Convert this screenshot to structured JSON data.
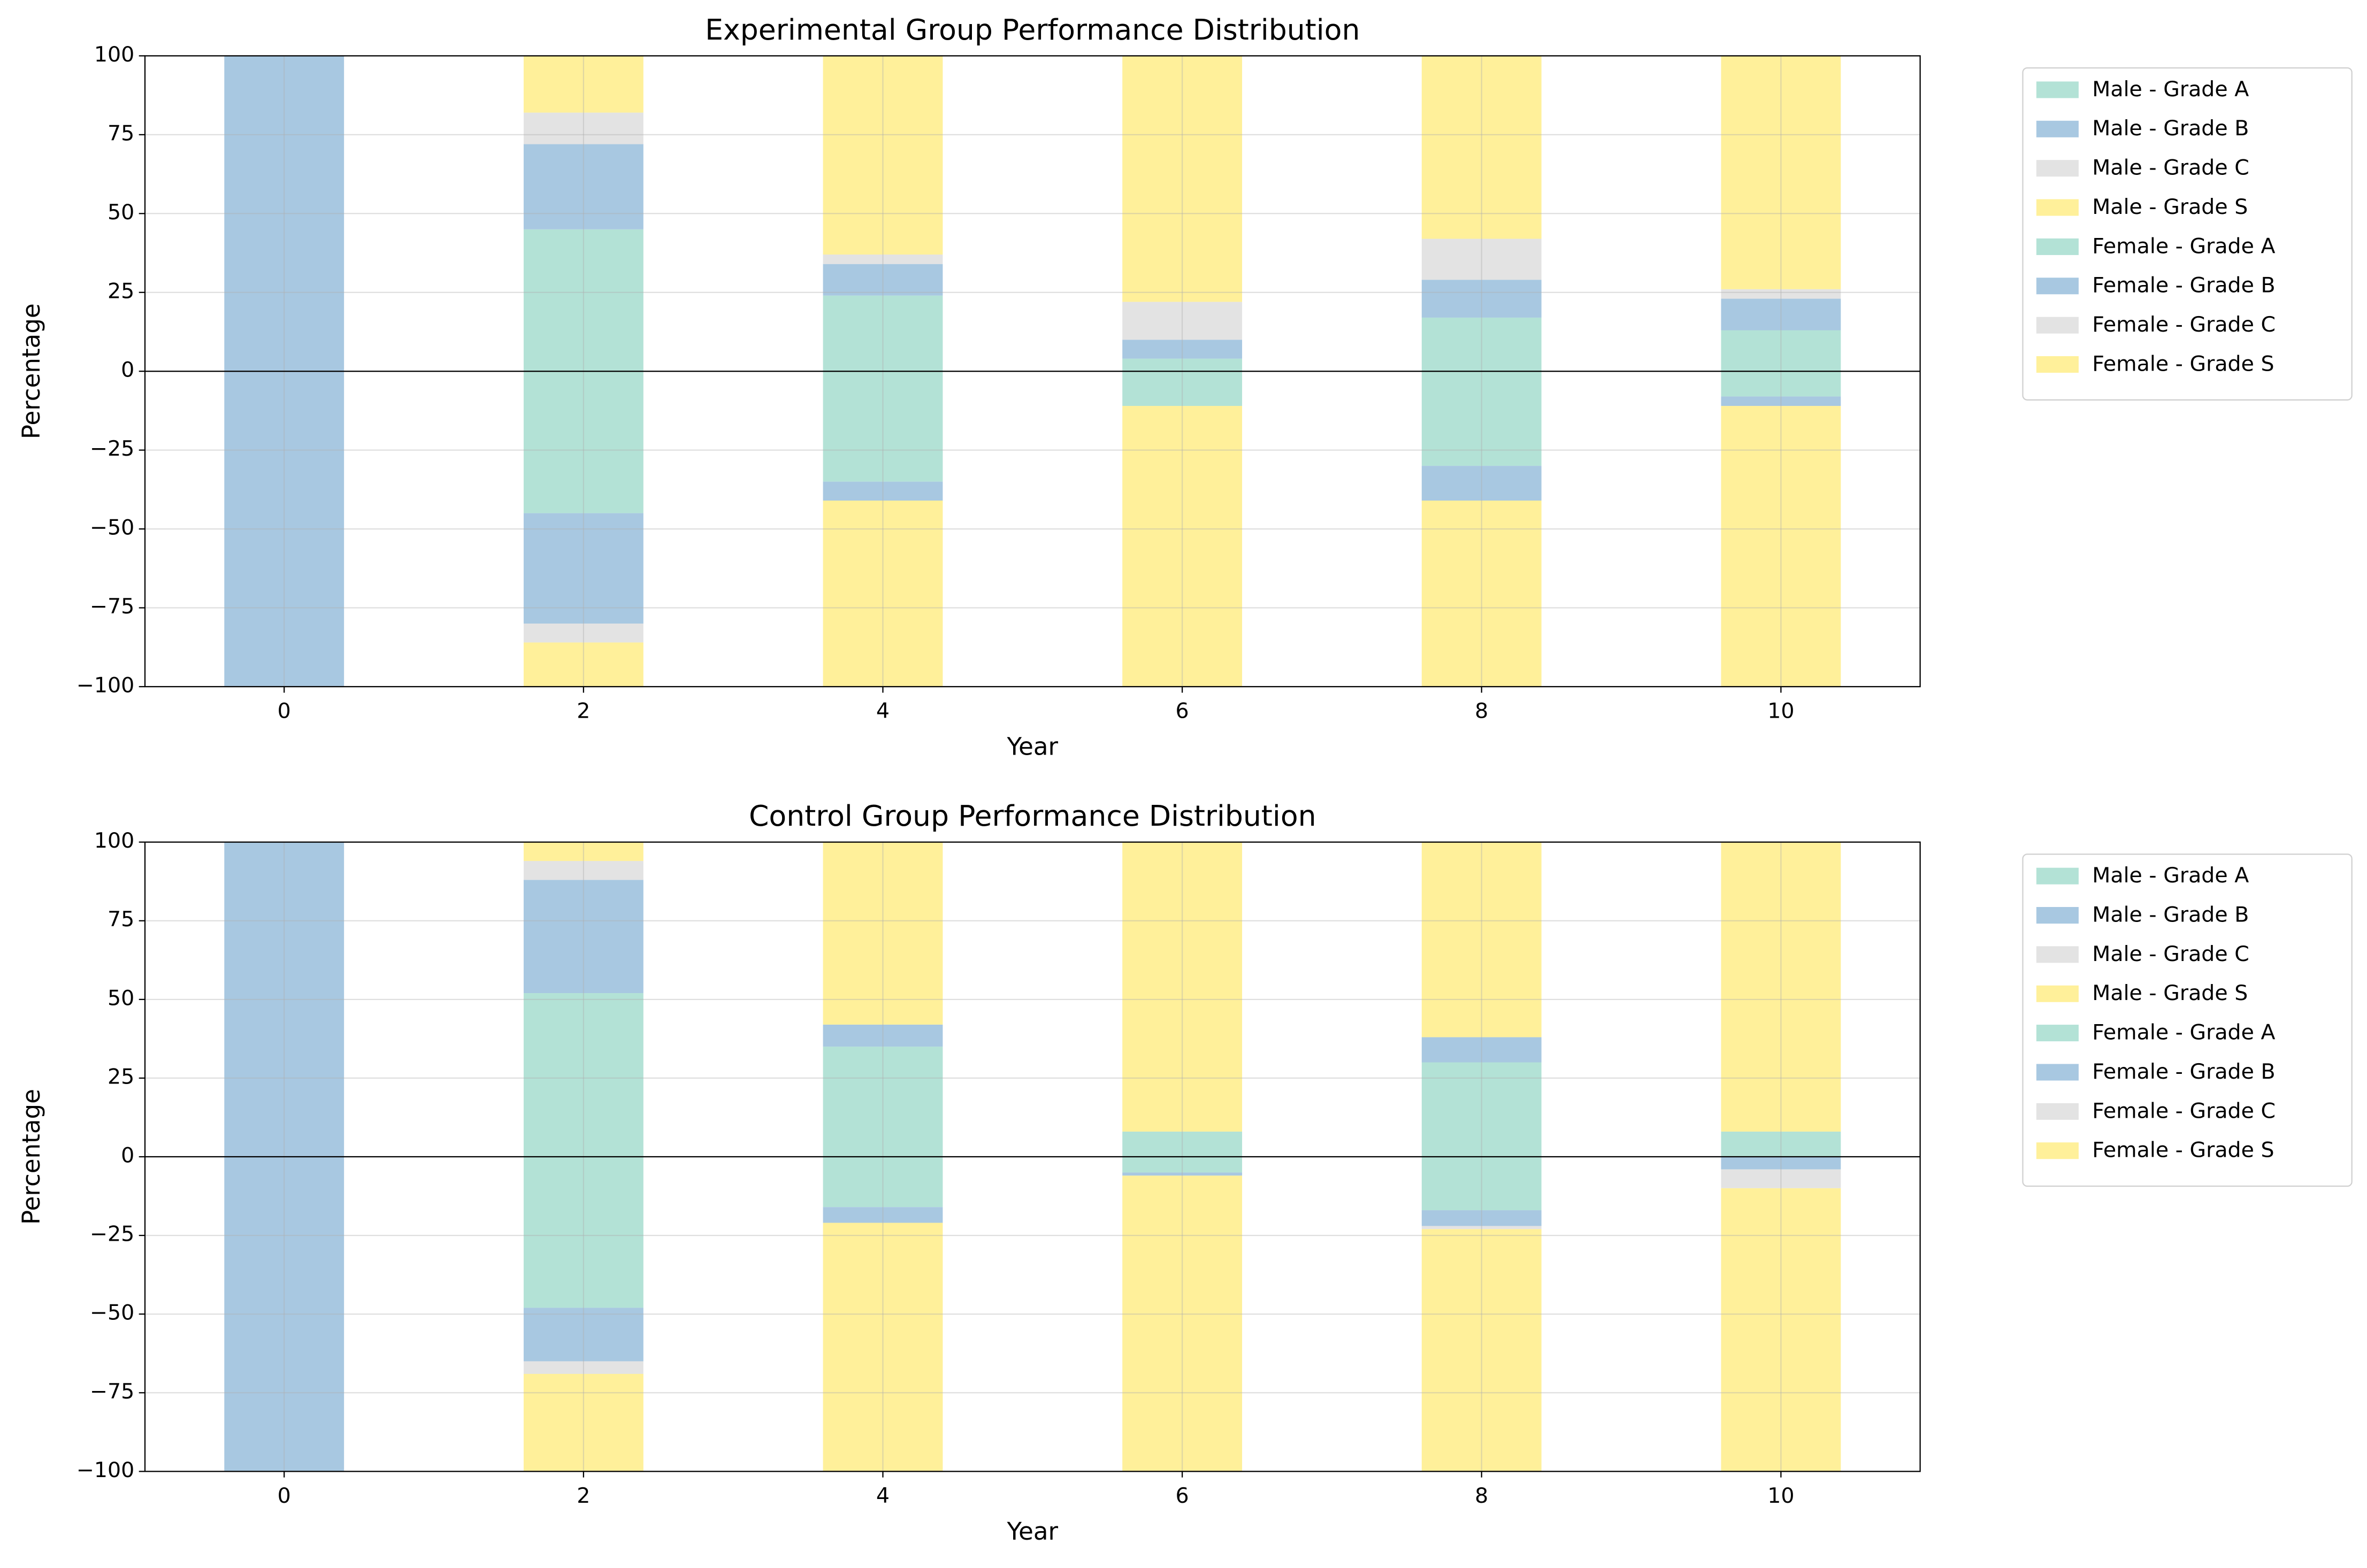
{
  "chart_data": [
    {
      "type": "bar",
      "title": "Experimental Group Performance Distribution",
      "x_label": "Year",
      "y_label": "Percentage",
      "x": [
        0,
        2,
        4,
        6,
        8,
        10
      ],
      "xlim": [
        -0.93,
        10.93
      ],
      "xticks": [
        0,
        2,
        4,
        6,
        8,
        10
      ],
      "ylim": [
        -100,
        100
      ],
      "yticks": [
        {
          "value": -100,
          "label": "−100"
        },
        {
          "value": -75,
          "label": "−75"
        },
        {
          "value": -50,
          "label": "−50"
        },
        {
          "value": -25,
          "label": "−25"
        },
        0,
        25,
        50,
        75,
        100
      ],
      "grid": true,
      "legend": "outside right",
      "series": [
        {
          "name": "Male - Grade A",
          "color": "#b3e2d6",
          "values": [
            0,
            45,
            24,
            4,
            17,
            13
          ]
        },
        {
          "name": "Male - Grade B",
          "color": "#a8c8e1",
          "values": [
            100,
            27,
            10,
            6,
            12,
            10
          ]
        },
        {
          "name": "Male - Grade C",
          "color": "#e3e3e3",
          "values": [
            0,
            10,
            3,
            12,
            13,
            3
          ]
        },
        {
          "name": "Male - Grade S",
          "color": "#fff09a",
          "values": [
            0,
            18,
            63,
            78,
            58,
            74
          ]
        },
        {
          "name": "Female - Grade A",
          "color": "#b3e2d6",
          "values": [
            0,
            -45,
            -35,
            -11,
            -30,
            -8
          ]
        },
        {
          "name": "Female - Grade B",
          "color": "#a8c8e1",
          "values": [
            -100,
            -35,
            -6,
            0,
            -11,
            -3
          ]
        },
        {
          "name": "Female - Grade C",
          "color": "#e3e3e3",
          "values": [
            0,
            -6,
            0,
            0,
            0,
            0
          ]
        },
        {
          "name": "Female - Grade S",
          "color": "#fff09a",
          "values": [
            0,
            -14,
            -59,
            -89,
            -59,
            -89
          ]
        }
      ]
    },
    {
      "type": "bar",
      "title": "Control Group Performance Distribution",
      "x_label": "Year",
      "y_label": "Percentage",
      "x": [
        0,
        2,
        4,
        6,
        8,
        10
      ],
      "xlim": [
        -0.93,
        10.93
      ],
      "xticks": [
        0,
        2,
        4,
        6,
        8,
        10
      ],
      "ylim": [
        -100,
        100
      ],
      "yticks": [
        {
          "value": -100,
          "label": "−100"
        },
        {
          "value": -75,
          "label": "−75"
        },
        {
          "value": -50,
          "label": "−50"
        },
        {
          "value": -25,
          "label": "−25"
        },
        0,
        25,
        50,
        75,
        100
      ],
      "grid": true,
      "legend": "outside right",
      "series": [
        {
          "name": "Male - Grade A",
          "color": "#b3e2d6",
          "values": [
            0,
            52,
            35,
            8,
            30,
            8
          ]
        },
        {
          "name": "Male - Grade B",
          "color": "#a8c8e1",
          "values": [
            100,
            36,
            7,
            0,
            8,
            0
          ]
        },
        {
          "name": "Male - Grade C",
          "color": "#e3e3e3",
          "values": [
            0,
            6,
            0,
            0,
            0,
            0
          ]
        },
        {
          "name": "Male - Grade S",
          "color": "#fff09a",
          "values": [
            0,
            6,
            58,
            92,
            62,
            92
          ]
        },
        {
          "name": "Female - Grade A",
          "color": "#b3e2d6",
          "values": [
            0,
            -48,
            -16,
            -5,
            -17,
            0
          ]
        },
        {
          "name": "Female - Grade B",
          "color": "#a8c8e1",
          "values": [
            -100,
            -17,
            -5,
            -1,
            -5,
            -4
          ]
        },
        {
          "name": "Female - Grade C",
          "color": "#e3e3e3",
          "values": [
            0,
            -4,
            0,
            0,
            -1,
            -6
          ]
        },
        {
          "name": "Female - Grade S",
          "color": "#fff09a",
          "values": [
            0,
            -31,
            -79,
            -94,
            -77,
            -90
          ]
        }
      ]
    }
  ]
}
